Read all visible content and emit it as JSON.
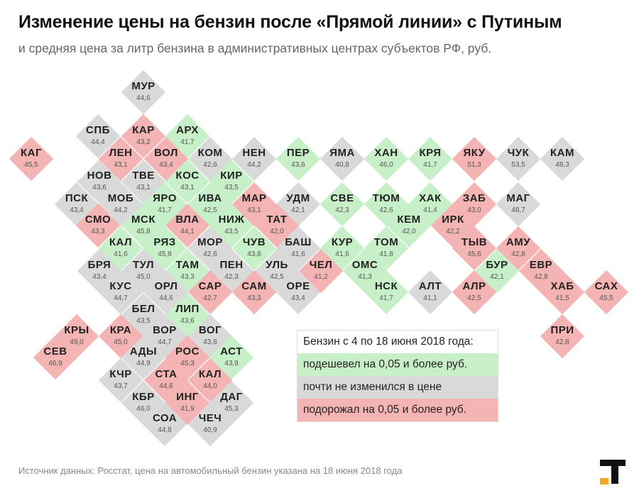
{
  "title": "Изменение цены на бензин после «Прямой линии» с Путиным",
  "subtitle": "и средняя цена за литр бензина в административных центрах субъектов РФ, руб.",
  "legend": {
    "title": "Бензин с 4 по 18 июня 2018 года:",
    "cheaper": "подешевел на 0,05 и более руб.",
    "same": "почти не изменился в цене",
    "pricier": "подорожал на 0,05 и более руб."
  },
  "source": "Источник данных: Росстат, цена на автомобильный бензин указана на 18 июня 2018 года",
  "colors": {
    "cheaper": "#c8f0c8",
    "same": "#d9d9d9",
    "pricier": "#f5b4b4",
    "logo_black": "#111111",
    "logo_orange": "#f5a623"
  },
  "chart_data": {
    "type": "tile-map",
    "unit": "руб.",
    "regions": [
      {
        "code": "МУР",
        "value": "44,6",
        "status": "same"
      },
      {
        "code": "СПБ",
        "value": "44,4",
        "status": "same"
      },
      {
        "code": "КАР",
        "value": "43,2",
        "status": "pricier"
      },
      {
        "code": "АРХ",
        "value": "41,7",
        "status": "cheaper"
      },
      {
        "code": "КАГ",
        "value": "45,5",
        "status": "pricier"
      },
      {
        "code": "ЛЕН",
        "value": "43,1",
        "status": "pricier"
      },
      {
        "code": "ВОЛ",
        "value": "43,4",
        "status": "pricier"
      },
      {
        "code": "КОМ",
        "value": "42,6",
        "status": "same"
      },
      {
        "code": "НЕН",
        "value": "44,2",
        "status": "same"
      },
      {
        "code": "ПЕР",
        "value": "43,6",
        "status": "cheaper"
      },
      {
        "code": "ЯМА",
        "value": "40,8",
        "status": "same"
      },
      {
        "code": "ХАН",
        "value": "46,0",
        "status": "cheaper"
      },
      {
        "code": "КРЯ",
        "value": "41,7",
        "status": "cheaper"
      },
      {
        "code": "ЯКУ",
        "value": "51,3",
        "status": "pricier"
      },
      {
        "code": "ЧУК",
        "value": "53,5",
        "status": "same"
      },
      {
        "code": "КАМ",
        "value": "48,3",
        "status": "same"
      },
      {
        "code": "НОВ",
        "value": "43,6",
        "status": "same"
      },
      {
        "code": "ТВЕ",
        "value": "43,1",
        "status": "same"
      },
      {
        "code": "КОС",
        "value": "43,1",
        "status": "cheaper"
      },
      {
        "code": "КИР",
        "value": "43,5",
        "status": "cheaper"
      },
      {
        "code": "ПСК",
        "value": "43,4",
        "status": "same"
      },
      {
        "code": "МОБ",
        "value": "44,2",
        "status": "same"
      },
      {
        "code": "ЯРО",
        "value": "41,7",
        "status": "cheaper"
      },
      {
        "code": "ИВА",
        "value": "42,5",
        "status": "cheaper"
      },
      {
        "code": "МАР",
        "value": "43,1",
        "status": "pricier"
      },
      {
        "code": "УДМ",
        "value": "42,1",
        "status": "same"
      },
      {
        "code": "СВЕ",
        "value": "42,3",
        "status": "cheaper"
      },
      {
        "code": "ТЮМ",
        "value": "42,6",
        "status": "cheaper"
      },
      {
        "code": "ХАК",
        "value": "41,4",
        "status": "cheaper"
      },
      {
        "code": "ЗАБ",
        "value": "43,0",
        "status": "pricier"
      },
      {
        "code": "МАГ",
        "value": "48,7",
        "status": "same"
      },
      {
        "code": "СМО",
        "value": "43,3",
        "status": "pricier"
      },
      {
        "code": "МСК",
        "value": "45,8",
        "status": "cheaper"
      },
      {
        "code": "ВЛА",
        "value": "44,1",
        "status": "pricier"
      },
      {
        "code": "НИЖ",
        "value": "43,5",
        "status": "cheaper"
      },
      {
        "code": "ТАТ",
        "value": "42,0",
        "status": "pricier"
      },
      {
        "code": "КЕМ",
        "value": "42,0",
        "status": "cheaper"
      },
      {
        "code": "ИРК",
        "value": "42,2",
        "status": "pricier"
      },
      {
        "code": "КАЛ",
        "value": "41,6",
        "status": "cheaper"
      },
      {
        "code": "РЯЗ",
        "value": "45,8",
        "status": "cheaper"
      },
      {
        "code": "МОР",
        "value": "42,6",
        "status": "same"
      },
      {
        "code": "ЧУВ",
        "value": "43,8",
        "status": "cheaper"
      },
      {
        "code": "БАШ",
        "value": "41,6",
        "status": "same"
      },
      {
        "code": "КУР",
        "value": "41,6",
        "status": "cheaper"
      },
      {
        "code": "ТОМ",
        "value": "41,8",
        "status": "cheaper"
      },
      {
        "code": "ТЫВ",
        "value": "45,6",
        "status": "pricier"
      },
      {
        "code": "АМУ",
        "value": "42,8",
        "status": "pricier"
      },
      {
        "code": "БРЯ",
        "value": "43,4",
        "status": "same"
      },
      {
        "code": "ТУЛ",
        "value": "45,0",
        "status": "same"
      },
      {
        "code": "ТАМ",
        "value": "43,3",
        "status": "cheaper"
      },
      {
        "code": "ПЕН",
        "value": "42,3",
        "status": "same"
      },
      {
        "code": "УЛЬ",
        "value": "42,5",
        "status": "same"
      },
      {
        "code": "ЧЕЛ",
        "value": "41,2",
        "status": "pricier"
      },
      {
        "code": "ОМС",
        "value": "41,3",
        "status": "cheaper"
      },
      {
        "code": "БУР",
        "value": "42,1",
        "status": "cheaper"
      },
      {
        "code": "ЕВР",
        "value": "42,8",
        "status": "pricier"
      },
      {
        "code": "КУС",
        "value": "44,7",
        "status": "same"
      },
      {
        "code": "ОРЛ",
        "value": "44,6",
        "status": "same"
      },
      {
        "code": "САР",
        "value": "42,7",
        "status": "pricier"
      },
      {
        "code": "САМ",
        "value": "43,3",
        "status": "pricier"
      },
      {
        "code": "ОРЕ",
        "value": "43,4",
        "status": "same"
      },
      {
        "code": "НСК",
        "value": "41,7",
        "status": "cheaper"
      },
      {
        "code": "АЛТ",
        "value": "41,1",
        "status": "same"
      },
      {
        "code": "АЛР",
        "value": "42,5",
        "status": "pricier"
      },
      {
        "code": "ХАБ",
        "value": "41,5",
        "status": "pricier"
      },
      {
        "code": "САХ",
        "value": "45,5",
        "status": "pricier"
      },
      {
        "code": "БЕЛ",
        "value": "43,5",
        "status": "same"
      },
      {
        "code": "ЛИП",
        "value": "43,6",
        "status": "cheaper"
      },
      {
        "code": "КРЫ",
        "value": "49,0",
        "status": "pricier"
      },
      {
        "code": "КРА",
        "value": "45,0",
        "status": "pricier"
      },
      {
        "code": "ВОР",
        "value": "44,7",
        "status": "same"
      },
      {
        "code": "ВОГ",
        "value": "43,8",
        "status": "same"
      },
      {
        "code": "ПРИ",
        "value": "42,8",
        "status": "pricier"
      },
      {
        "code": "СЕВ",
        "value": "46,9",
        "status": "pricier"
      },
      {
        "code": "АДЫ",
        "value": "44,9",
        "status": "same"
      },
      {
        "code": "РОС",
        "value": "45,3",
        "status": "pricier"
      },
      {
        "code": "АСТ",
        "value": "43,9",
        "status": "cheaper"
      },
      {
        "code": "КЧР",
        "value": "43,7",
        "status": "same"
      },
      {
        "code": "СТА",
        "value": "44,6",
        "status": "pricier"
      },
      {
        "code": "КАЛ",
        "value": "44,0",
        "status": "pricier"
      },
      {
        "code": "КБР",
        "value": "46,0",
        "status": "same"
      },
      {
        "code": "ИНГ",
        "value": "41,9",
        "status": "pricier"
      },
      {
        "code": "ДАГ",
        "value": "45,3",
        "status": "same"
      },
      {
        "code": "СОА",
        "value": "44,8",
        "status": "same"
      },
      {
        "code": "ЧЕЧ",
        "value": "40,9",
        "status": "same"
      }
    ]
  }
}
